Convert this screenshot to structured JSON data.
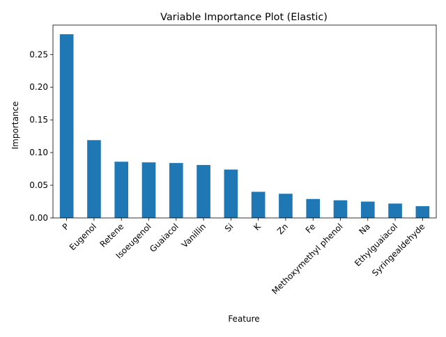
{
  "chart_data": {
    "type": "bar",
    "title": "Variable Importance Plot (Elastic)",
    "xlabel": "Feature",
    "ylabel": "Importance",
    "categories": [
      "P",
      "Eugenol",
      "Retene",
      "Isoeugenol",
      "Guaiacol",
      "Vanillin",
      "Si",
      "K",
      "Zn",
      "Fe",
      "Methoxymethyl phenol",
      "Na",
      "Ethylguaiacol",
      "Syringealdehyde"
    ],
    "values": [
      0.281,
      0.119,
      0.086,
      0.085,
      0.084,
      0.081,
      0.074,
      0.04,
      0.037,
      0.029,
      0.027,
      0.025,
      0.022,
      0.018
    ],
    "yticks": [
      "0.00",
      "0.05",
      "0.10",
      "0.15",
      "0.20",
      "0.25"
    ],
    "ylim": [
      0,
      0.295
    ],
    "bar_color": "#1f77b4",
    "grid": false,
    "legend": "none"
  }
}
